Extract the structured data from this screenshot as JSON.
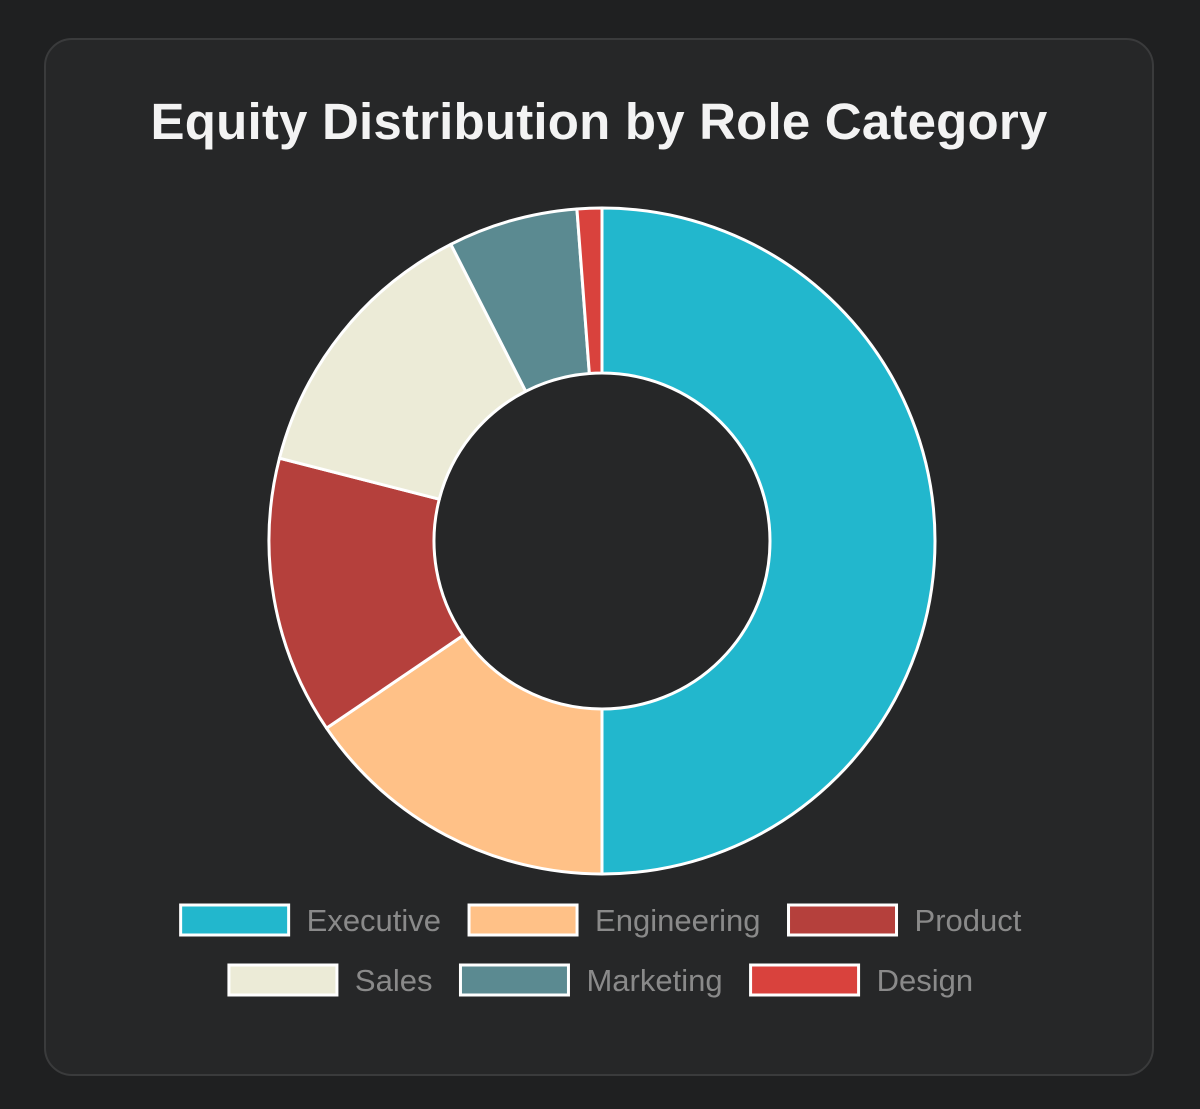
{
  "chart_data": {
    "type": "pie",
    "variant": "donut",
    "title": "Equity Distribution by Role Category",
    "categories": [
      "Executive",
      "Engineering",
      "Product",
      "Sales",
      "Marketing",
      "Design"
    ],
    "values": [
      50.0,
      15.5,
      13.5,
      13.5,
      6.3,
      1.2
    ],
    "colors": [
      "#22b7cd",
      "#ffc187",
      "#b5403c",
      "#ecebd7",
      "#5b8a91",
      "#d9423d"
    ],
    "slice_border_color": "#ffffff",
    "legend_position": "bottom"
  }
}
